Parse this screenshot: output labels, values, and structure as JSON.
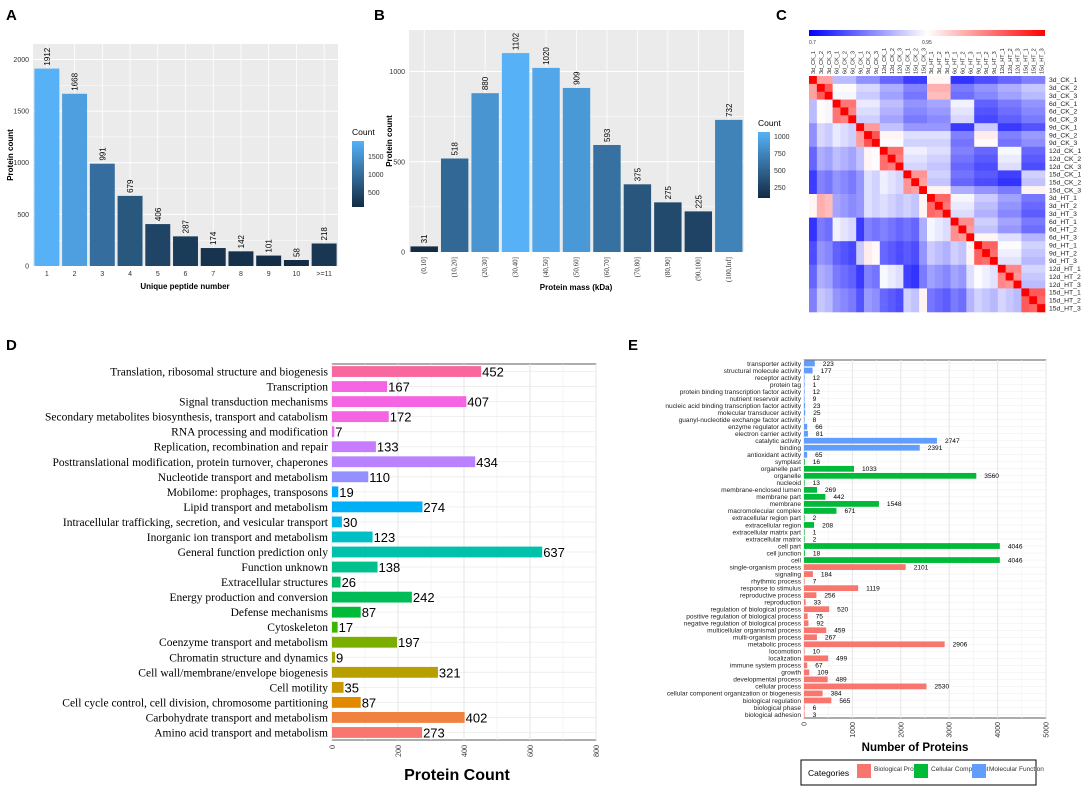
{
  "panel_labels": [
    "A",
    "B",
    "C",
    "D",
    "E"
  ],
  "legend": {
    "count_title": "Count",
    "a_ticks": [
      "1500",
      "1000",
      "500"
    ],
    "b_ticks": [
      "1000",
      "750",
      "500",
      "250"
    ],
    "c_ticks": [
      "0.7",
      "0.95"
    ],
    "e_title": "Categories",
    "e_items": [
      "Biological Process",
      "Cellular Component",
      "Molecular Function"
    ]
  },
  "colors": {
    "biological": "#f8766d",
    "cellular": "#00ba38",
    "molecular": "#619cff",
    "count_low": "#132b43",
    "count_high": "#56b1f7",
    "hm_low": "#0000ff",
    "hm_mid": "#ffffff",
    "hm_high": "#ff0000"
  },
  "chart_data": [
    {
      "panel": "A",
      "type": "bar",
      "xlabel": "Unique peptide number",
      "ylabel": "Protein count",
      "categories": [
        "1",
        "2",
        "3",
        "4",
        "5",
        "6",
        "7",
        "8",
        "9",
        "10",
        ">=11"
      ],
      "values": [
        1912,
        1668,
        991,
        679,
        406,
        287,
        174,
        142,
        101,
        58,
        218
      ],
      "ylim": [
        0,
        2150
      ],
      "yticks": [
        0,
        500,
        1000,
        1500,
        2000
      ],
      "fill": "count gradient"
    },
    {
      "panel": "B",
      "type": "bar",
      "xlabel": "Protein mass (kDa)",
      "ylabel": "Protein count",
      "categories": [
        "(0,10]",
        "(10,20]",
        "(20,30]",
        "(30,40]",
        "(40,50]",
        "(50,60]",
        "(60,70]",
        "(70,80]",
        "(80,90]",
        "(90,100]",
        "(100,Inf]"
      ],
      "values": [
        31,
        518,
        880,
        1102,
        1020,
        909,
        593,
        375,
        275,
        225,
        732
      ],
      "ylim": [
        0,
        1230
      ],
      "yticks": [
        0,
        500,
        1000
      ],
      "fill": "count gradient"
    },
    {
      "panel": "C",
      "type": "heatmap",
      "labels": [
        "3d_CK_1",
        "3d_CK_2",
        "3d_CK_3",
        "6d_CK_1",
        "6d_CK_2",
        "6d_CK_3",
        "9d_CK_1",
        "9d_CK_2",
        "9d_CK_3",
        "12d_CK_1",
        "12d_CK_2",
        "12d_CK_3",
        "15d_CK_1",
        "15d_CK_2",
        "15d_CK_3",
        "3d_HT_1",
        "3d_HT_2",
        "3d_HT_3",
        "6d_HT_1",
        "6d_HT_2",
        "6d_HT_3",
        "9d_HT_1",
        "9d_HT_2",
        "9d_HT_3",
        "12d_HT_1",
        "12d_HT_2",
        "12d_HT_3",
        "15d_HT_1",
        "15d_HT_2",
        "15d_HT_3"
      ],
      "color_range": [
        0.7,
        1.0
      ],
      "note": "pairwise correlation matrix, diagonal = 1"
    },
    {
      "panel": "D",
      "type": "bar",
      "orientation": "horizontal",
      "xlabel": "Protein Count",
      "xlim": [
        0,
        800
      ],
      "xticks": [
        0,
        200,
        400,
        600,
        800
      ],
      "categories": [
        "Translation, ribosomal structure and biogenesis",
        "Transcription",
        "Signal transduction mechanisms",
        "Secondary metabolites biosynthesis, transport and catabolism",
        "RNA processing and modification",
        "Replication, recombination and repair",
        "Posttranslational modification, protein turnover, chaperones",
        "Nucleotide transport and metabolism",
        "Mobilome: prophages, transposons",
        "Lipid transport and metabolism",
        "Intracellular trafficking, secretion, and vesicular transport",
        "Inorganic ion transport and metabolism",
        "General function prediction only",
        "Function unknown",
        "Extracellular structures",
        "Energy production and conversion",
        "Defense mechanisms",
        "Cytoskeleton",
        "Coenzyme transport and metabolism",
        "Chromatin structure and dynamics",
        "Cell wall/membrane/envelope biogenesis",
        "Cell motility",
        "Cell cycle control, cell division, chromosome partitioning",
        "Carbohydrate transport and metabolism",
        "Amino acid transport and metabolism"
      ],
      "values": [
        452,
        167,
        407,
        172,
        7,
        133,
        434,
        110,
        19,
        274,
        30,
        123,
        637,
        138,
        26,
        242,
        87,
        17,
        197,
        9,
        321,
        35,
        87,
        402,
        273
      ],
      "bar_colors": [
        "#f8679d",
        "#f564e3",
        "#f564e3",
        "#f564e3",
        "#e76bf3",
        "#c77cff",
        "#b983ff",
        "#9590ff",
        "#00a9ff",
        "#00b0f6",
        "#00b8e7",
        "#00bfc4",
        "#00c1a9",
        "#00c08b",
        "#00be67",
        "#00bc56",
        "#00ba38",
        "#39b600",
        "#7cae00",
        "#a3a500",
        "#b79f00",
        "#c99800",
        "#e18a00",
        "#f0813f",
        "#f8766d"
      ]
    },
    {
      "panel": "E",
      "type": "bar",
      "orientation": "horizontal",
      "xlabel": "Number of Proteins",
      "xlim": [
        0,
        5000
      ],
      "xticks": [
        0,
        1000,
        2000,
        3000,
        4000,
        5000
      ],
      "categories": [
        "transporter activity",
        "structural molecule activity",
        "receptor activity",
        "protein tag",
        "protein binding transcription factor activity",
        "nutrient reservoir activity",
        "nucleic acid binding transcription factor activity",
        "molecular transducer activity",
        "guanyl-nucleotide exchange factor activity",
        "enzyme regulator activity",
        "electron carrier activity",
        "catalytic activity",
        "binding",
        "antioxidant activity",
        "symplast",
        "organelle part",
        "organelle",
        "nucleoid",
        "membrane-enclosed lumen",
        "membrane part",
        "membrane",
        "macromolecular complex",
        "extracellular region part",
        "extracellular region",
        "extracellular matrix part",
        "extracellular matrix",
        "cell part",
        "cell junction",
        "cell",
        "single-organism process",
        "signaling",
        "rhythmic process",
        "response to stimulus",
        "reproductive process",
        "reproduction",
        "regulation of biological process",
        "positive regulation of biological process",
        "negative regulation of biological process",
        "multicellular organismal process",
        "multi-organism process",
        "metabolic process",
        "locomotion",
        "localization",
        "immune system process",
        "growth",
        "developmental process",
        "cellular process",
        "cellular component organization or biogenesis",
        "biological regulation",
        "biological phase",
        "biological adhesion"
      ],
      "values": [
        223,
        177,
        12,
        1,
        12,
        9,
        23,
        25,
        8,
        66,
        81,
        2747,
        2391,
        65,
        16,
        1033,
        3560,
        13,
        269,
        442,
        1548,
        671,
        2,
        208,
        1,
        2,
        4046,
        18,
        4046,
        2101,
        184,
        7,
        1119,
        256,
        33,
        520,
        75,
        92,
        459,
        267,
        2906,
        10,
        499,
        67,
        109,
        489,
        2530,
        384,
        565,
        6,
        3
      ],
      "groups": [
        "M",
        "M",
        "M",
        "M",
        "M",
        "M",
        "M",
        "M",
        "M",
        "M",
        "M",
        "M",
        "M",
        "M",
        "C",
        "C",
        "C",
        "C",
        "C",
        "C",
        "C",
        "C",
        "C",
        "C",
        "C",
        "C",
        "C",
        "C",
        "C",
        "B",
        "B",
        "B",
        "B",
        "B",
        "B",
        "B",
        "B",
        "B",
        "B",
        "B",
        "B",
        "B",
        "B",
        "B",
        "B",
        "B",
        "B",
        "B",
        "B",
        "B",
        "B"
      ]
    }
  ]
}
